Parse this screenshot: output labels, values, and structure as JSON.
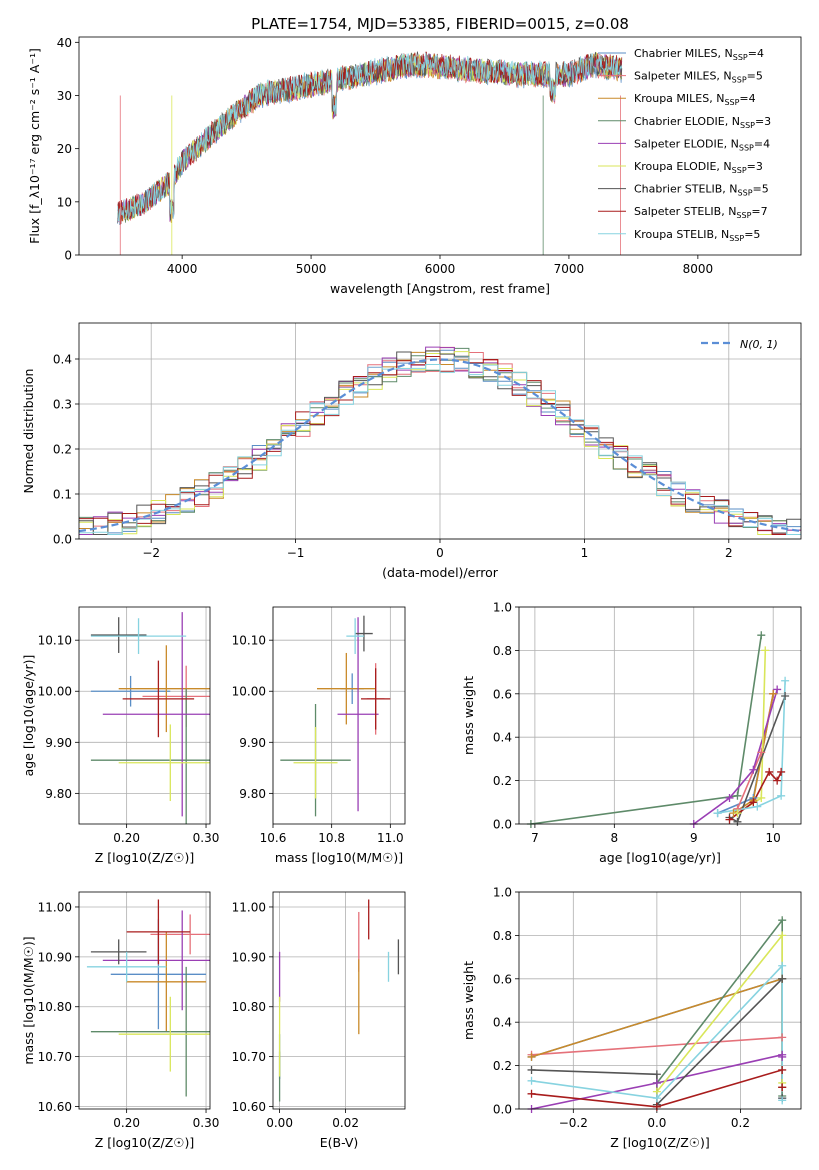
{
  "colors": {
    "Chabrier MILES": "#5a8ec6",
    "Salpeter MILES": "#e5717a",
    "Kroupa MILES": "#c98a2a",
    "Chabrier ELODIE": "#5e8a69",
    "Salpeter ELODIE": "#9a3fb4",
    "Kroupa ELODIE": "#d9e65a",
    "Chabrier STELIB": "#555555",
    "Salpeter STELIB": "#a81c1c",
    "Kroupa STELIB": "#87d3e0",
    "Normal": "#5b8ed6"
  },
  "chart_data": [
    {
      "id": "spectrum",
      "type": "line",
      "title": "PLATE=1754, MJD=53385, FIBERID=0015, z=0.08",
      "xlabel": "wavelength [Angstrom, rest frame]",
      "ylabel": "Flux [f_λ10⁻¹⁷ erg cm⁻² s⁻¹ A⁻¹]",
      "xlim": [
        3200,
        8800
      ],
      "ylim": [
        0,
        41
      ],
      "xticks": [
        4000,
        5000,
        6000,
        7000,
        8000
      ],
      "yticks": [
        0,
        10,
        20,
        30,
        40
      ],
      "grid": false,
      "legend": "upper right",
      "continuum": {
        "x": [
          3500,
          3700,
          3900,
          4000,
          4300,
          4600,
          5000,
          5400,
          5800,
          6200,
          6600,
          7000,
          7200,
          7400
        ],
        "y": [
          8,
          10,
          14,
          18,
          25,
          31,
          33,
          35,
          37,
          36,
          35,
          35,
          37,
          36
        ]
      },
      "series": [
        {
          "name": "Chabrier MILES",
          "nssp": "4"
        },
        {
          "name": "Salpeter MILES",
          "nssp": "5"
        },
        {
          "name": "Kroupa MILES",
          "nssp": "4"
        },
        {
          "name": "Chabrier ELODIE",
          "nssp": "3"
        },
        {
          "name": "Salpeter ELODIE",
          "nssp": "4"
        },
        {
          "name": "Kroupa ELODIE",
          "nssp": "3"
        },
        {
          "name": "Chabrier STELIB",
          "nssp": "5"
        },
        {
          "name": "Salpeter STELIB",
          "nssp": "7"
        },
        {
          "name": "Kroupa STELIB",
          "nssp": "5"
        }
      ]
    },
    {
      "id": "residuals",
      "type": "histogram",
      "xlabel": "(data-model)/error",
      "ylabel": "Normed distribution",
      "xlim": [
        -2.5,
        2.5
      ],
      "ylim": [
        0,
        0.48
      ],
      "xticks": [
        -2,
        -1,
        0,
        1,
        2
      ],
      "yticks": [
        0.0,
        0.1,
        0.2,
        0.3,
        0.4
      ],
      "grid": true,
      "legend": "upper right",
      "legend_label": "N(0, 1)",
      "bin_width": 0.1
    },
    {
      "id": "age_vs_Z",
      "type": "errorbar",
      "xlabel": "Z [log10(Z/Z☉)]",
      "ylabel": "age [log10(age/yr)]",
      "xlim": [
        0.14,
        0.305
      ],
      "ylim": [
        9.74,
        10.165
      ],
      "xticks": [
        0.2,
        0.3
      ],
      "yticks": [
        9.8,
        9.9,
        10.0,
        10.1
      ],
      "grid": true,
      "points": [
        {
          "s": "Chabrier MILES",
          "x": 0.205,
          "xerr": 0.05,
          "y": 10.0,
          "yerr": 0.03
        },
        {
          "s": "Salpeter MILES",
          "x": 0.275,
          "xerr": 0.055,
          "y": 9.99,
          "yerr": 0.06
        },
        {
          "s": "Kroupa MILES",
          "x": 0.25,
          "xerr": 0.06,
          "y": 10.005,
          "yerr": 0.085
        },
        {
          "s": "Chabrier ELODIE",
          "x": 0.275,
          "xerr": 0.12,
          "y": 9.865,
          "yerr": 0.14
        },
        {
          "s": "Salpeter ELODIE",
          "x": 0.27,
          "xerr": 0.1,
          "y": 9.955,
          "yerr": 0.2
        },
        {
          "s": "Kroupa ELODIE",
          "x": 0.255,
          "xerr": 0.065,
          "y": 9.86,
          "yerr": 0.075
        },
        {
          "s": "Chabrier STELIB",
          "x": 0.19,
          "xerr": 0.035,
          "y": 10.11,
          "yerr": 0.035
        },
        {
          "s": "Salpeter STELIB",
          "x": 0.24,
          "xerr": 0.045,
          "y": 9.985,
          "yerr": 0.075
        },
        {
          "s": "Kroupa STELIB",
          "x": 0.215,
          "xerr": 0.06,
          "y": 10.108,
          "yerr": 0.035
        }
      ]
    },
    {
      "id": "age_vs_mass",
      "type": "errorbar",
      "xlabel": "mass [log10(M/M☉)]",
      "ylabel": "",
      "xlim": [
        10.6,
        11.05
      ],
      "ylim": [
        9.74,
        10.165
      ],
      "xticks": [
        10.6,
        10.8,
        11.0
      ],
      "yticks": [
        9.8,
        9.9,
        10.0,
        10.1
      ],
      "grid": true,
      "points": [
        {
          "s": "Chabrier MILES",
          "x": 10.87,
          "xerr": 0.04,
          "y": 10.005,
          "yerr": 0.03
        },
        {
          "s": "Salpeter MILES",
          "x": 10.95,
          "xerr": 0.03,
          "y": 9.985,
          "yerr": 0.07
        },
        {
          "s": "Kroupa MILES",
          "x": 10.85,
          "xerr": 0.1,
          "y": 10.005,
          "yerr": 0.07
        },
        {
          "s": "Chabrier ELODIE",
          "x": 10.745,
          "xerr": 0.12,
          "y": 9.865,
          "yerr": 0.11
        },
        {
          "s": "Salpeter ELODIE",
          "x": 10.89,
          "xerr": 0.07,
          "y": 9.955,
          "yerr": 0.19
        },
        {
          "s": "Kroupa ELODIE",
          "x": 10.745,
          "xerr": 0.075,
          "y": 9.86,
          "yerr": 0.07
        },
        {
          "s": "Chabrier STELIB",
          "x": 10.91,
          "xerr": 0.03,
          "y": 10.113,
          "yerr": 0.035
        },
        {
          "s": "Salpeter STELIB",
          "x": 10.95,
          "xerr": 0.05,
          "y": 9.985,
          "yerr": 0.06
        },
        {
          "s": "Kroupa STELIB",
          "x": 10.88,
          "xerr": 0.03,
          "y": 10.108,
          "yerr": 0.035
        }
      ]
    },
    {
      "id": "weight_vs_age",
      "type": "line",
      "xlabel": "age [log10(age/yr)]",
      "ylabel": "mass weight",
      "xlim": [
        6.8,
        10.35
      ],
      "ylim": [
        0,
        1.0
      ],
      "xticks": [
        7,
        8,
        9,
        10
      ],
      "yticks": [
        0.0,
        0.2,
        0.4,
        0.6,
        0.8,
        1.0
      ],
      "grid": true,
      "series": [
        {
          "s": "Chabrier MILES",
          "x": [
            9.3,
            9.75,
            10.0
          ],
          "y": [
            0.05,
            0.12,
            0.6
          ]
        },
        {
          "s": "Salpeter MILES",
          "x": [
            9.55,
            9.85,
            10.0
          ],
          "y": [
            0.07,
            0.33,
            0.6
          ]
        },
        {
          "s": "Kroupa MILES",
          "x": [
            9.5,
            9.75,
            10.0
          ],
          "y": [
            0.05,
            0.11,
            0.6
          ]
        },
        {
          "s": "Chabrier ELODIE",
          "x": [
            6.95,
            9.55,
            9.85
          ],
          "y": [
            0.0,
            0.13,
            0.87
          ]
        },
        {
          "s": "Salpeter ELODIE",
          "x": [
            9.0,
            9.45,
            9.75,
            10.05
          ],
          "y": [
            0.0,
            0.12,
            0.25,
            0.62
          ]
        },
        {
          "s": "Kroupa ELODIE",
          "x": [
            9.55,
            9.85,
            9.9
          ],
          "y": [
            0.05,
            0.12,
            0.8
          ]
        },
        {
          "s": "Chabrier STELIB",
          "x": [
            9.45,
            9.55,
            10.15
          ],
          "y": [
            0.03,
            0.01,
            0.59
          ]
        },
        {
          "s": "Salpeter STELIB",
          "x": [
            9.45,
            9.75,
            9.95,
            10.05,
            10.1
          ],
          "y": [
            0.02,
            0.1,
            0.24,
            0.2,
            0.24
          ]
        },
        {
          "s": "Kroupa STELIB",
          "x": [
            9.3,
            9.8,
            10.1,
            10.15
          ],
          "y": [
            0.05,
            0.08,
            0.13,
            0.66
          ]
        }
      ]
    },
    {
      "id": "mass_vs_Z",
      "type": "errorbar",
      "xlabel": "Z [log10(Z/Z☉)]",
      "ylabel": "mass [log10(M/M☉)]",
      "xlim": [
        0.14,
        0.305
      ],
      "ylim": [
        10.595,
        11.03
      ],
      "xticks": [
        0.2,
        0.3
      ],
      "yticks": [
        10.6,
        10.7,
        10.8,
        10.9,
        11.0
      ],
      "grid": true,
      "points": [
        {
          "s": "Chabrier MILES",
          "x": 0.24,
          "xerr": 0.06,
          "y": 10.865,
          "yerr": 0.11
        },
        {
          "s": "Salpeter MILES",
          "x": 0.28,
          "xerr": 0.05,
          "y": 10.945,
          "yerr": 0.04
        },
        {
          "s": "Kroupa MILES",
          "x": 0.25,
          "xerr": 0.05,
          "y": 10.85,
          "yerr": 0.1
        },
        {
          "s": "Chabrier ELODIE",
          "x": 0.275,
          "xerr": 0.12,
          "y": 10.75,
          "yerr": 0.13
        },
        {
          "s": "Salpeter ELODIE",
          "x": 0.27,
          "xerr": 0.1,
          "y": 10.893,
          "yerr": 0.1
        },
        {
          "s": "Kroupa ELODIE",
          "x": 0.255,
          "xerr": 0.065,
          "y": 10.745,
          "yerr": 0.075
        },
        {
          "s": "Chabrier STELIB",
          "x": 0.19,
          "xerr": 0.035,
          "y": 10.91,
          "yerr": 0.025
        },
        {
          "s": "Salpeter STELIB",
          "x": 0.24,
          "xerr": 0.04,
          "y": 10.95,
          "yerr": 0.065
        },
        {
          "s": "Kroupa STELIB",
          "x": 0.2,
          "xerr": 0.05,
          "y": 10.88,
          "yerr": 0.03
        }
      ]
    },
    {
      "id": "mass_vs_ebv",
      "type": "errorbar",
      "xlabel": "E(B-V)",
      "ylabel": "",
      "xlim": [
        -0.002,
        0.038
      ],
      "ylim": [
        10.595,
        11.03
      ],
      "xticks": [
        0.0,
        0.02
      ],
      "yticks": [
        10.6,
        10.7,
        10.8,
        10.9,
        11.0
      ],
      "grid": true,
      "points": [
        {
          "s": "Chabrier MILES",
          "x": 0.0,
          "xerr": 0,
          "y": 10.7,
          "yerr": 0.045
        },
        {
          "s": "Salpeter MILES",
          "x": 0.024,
          "xerr": 0,
          "y": 10.93,
          "yerr": 0.06
        },
        {
          "s": "Kroupa MILES",
          "x": 0.024,
          "xerr": 0,
          "y": 10.82,
          "yerr": 0.075
        },
        {
          "s": "Chabrier ELODIE",
          "x": 0.0,
          "xerr": 0,
          "y": 10.66,
          "yerr": 0.05
        },
        {
          "s": "Salpeter ELODIE",
          "x": 0.0,
          "xerr": 0,
          "y": 10.86,
          "yerr": 0.05
        },
        {
          "s": "Kroupa ELODIE",
          "x": 0.0,
          "xerr": 0,
          "y": 10.74,
          "yerr": 0.08
        },
        {
          "s": "Chabrier STELIB",
          "x": 0.036,
          "xerr": 0,
          "y": 10.9,
          "yerr": 0.035
        },
        {
          "s": "Salpeter STELIB",
          "x": 0.027,
          "xerr": 0,
          "y": 10.975,
          "yerr": 0.04
        },
        {
          "s": "Kroupa STELIB",
          "x": 0.033,
          "xerr": 0,
          "y": 10.88,
          "yerr": 0.03
        }
      ]
    },
    {
      "id": "weight_vs_Z",
      "type": "line",
      "xlabel": "Z [log10(Z/Z☉)]",
      "ylabel": "mass weight",
      "xlim": [
        -0.33,
        0.345
      ],
      "ylim": [
        0,
        1.0
      ],
      "xticks": [
        -0.2,
        0.0,
        0.2
      ],
      "yticks": [
        0.0,
        0.2,
        0.4,
        0.6,
        0.8,
        1.0
      ],
      "grid": true,
      "series": [
        {
          "s": "Chabrier MILES",
          "x": [
            -0.3,
            0.3,
            0.3
          ],
          "y": [
            0.24,
            0.6,
            0.05
          ]
        },
        {
          "s": "Salpeter MILES",
          "x": [
            -0.3,
            0.3
          ],
          "y": [
            0.25,
            0.33
          ]
        },
        {
          "s": "Kroupa MILES",
          "x": [
            -0.3,
            0.3,
            0.3
          ],
          "y": [
            0.24,
            0.6,
            0.1
          ]
        },
        {
          "s": "Chabrier ELODIE",
          "x": [
            0.0,
            0.3,
            0.3
          ],
          "y": [
            0.12,
            0.87,
            0.06
          ]
        },
        {
          "s": "Salpeter ELODIE",
          "x": [
            -0.3,
            0.0,
            0.3,
            0.3
          ],
          "y": [
            0.0,
            0.12,
            0.25,
            0.24
          ]
        },
        {
          "s": "Kroupa ELODIE",
          "x": [
            0.0,
            0.3,
            0.3
          ],
          "y": [
            0.08,
            0.8,
            0.12
          ]
        },
        {
          "s": "Chabrier STELIB",
          "x": [
            -0.3,
            0.0,
            0.0,
            0.3,
            0.3
          ],
          "y": [
            0.18,
            0.16,
            0.02,
            0.6,
            0.05
          ]
        },
        {
          "s": "Salpeter STELIB",
          "x": [
            -0.3,
            0.0,
            0.3,
            0.3
          ],
          "y": [
            0.07,
            0.01,
            0.18,
            0.1
          ]
        },
        {
          "s": "Kroupa STELIB",
          "x": [
            -0.3,
            0.0,
            0.3,
            0.3
          ],
          "y": [
            0.13,
            0.05,
            0.66,
            0.04
          ]
        }
      ]
    }
  ]
}
